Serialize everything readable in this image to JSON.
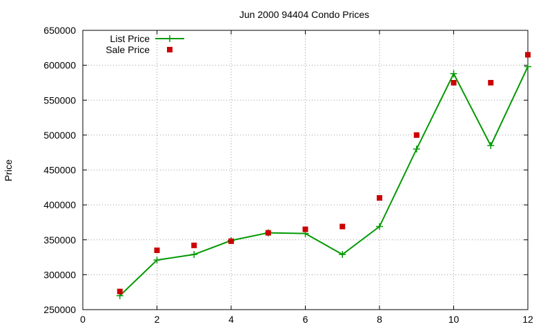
{
  "chart_data": {
    "type": "line",
    "title": "Jun 2000 94404 Condo Prices",
    "xlabel": "",
    "ylabel": "Price",
    "xlim": [
      0,
      12
    ],
    "ylim": [
      250000,
      650000
    ],
    "xticks": [
      0,
      2,
      4,
      6,
      8,
      10,
      12
    ],
    "yticks": [
      250000,
      300000,
      350000,
      400000,
      450000,
      500000,
      550000,
      600000,
      650000
    ],
    "grid": true,
    "legend_position": "top-left",
    "series": [
      {
        "name": "List Price",
        "style": "line-with-plus",
        "color": "#009900",
        "x": [
          1,
          2,
          3,
          4,
          5,
          6,
          7,
          8,
          9,
          10,
          11,
          12
        ],
        "y": [
          270000,
          321000,
          329000,
          349000,
          360000,
          359000,
          329000,
          369000,
          480000,
          588000,
          485000,
          598000
        ]
      },
      {
        "name": "Sale Price",
        "style": "square-points",
        "color": "#cc0000",
        "x": [
          1,
          2,
          3,
          4,
          5,
          6,
          7,
          8,
          9,
          10,
          11,
          12
        ],
        "y": [
          276000,
          335000,
          342000,
          348000,
          360000,
          365000,
          369000,
          410000,
          500000,
          575000,
          575000,
          615000
        ]
      }
    ]
  }
}
